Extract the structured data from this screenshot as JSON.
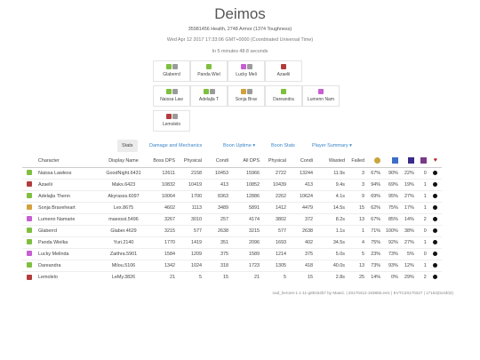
{
  "header": {
    "title": "Deimos",
    "health_line": "35981456 Health, 2748 Armor (1374 Toughness)",
    "date_line": "Wed Apr 12 2017 17:33:06 GMT+0000 (Coordinated Universal Time)",
    "duration_line": "In 5 minutes 48.8 seconds"
  },
  "squad": [
    {
      "name": "Glaberrd",
      "colors": [
        "#7fbf3f",
        "#9b9b9b"
      ]
    },
    {
      "name": "Panda Wiel",
      "colors": [
        "#7fbf3f"
      ]
    },
    {
      "name": "Lucky Meli",
      "colors": [
        "#c75ed1",
        "#9b9b9b"
      ]
    },
    {
      "name": "Azaelii",
      "colors": [
        "#b23c3c"
      ]
    },
    {
      "name": "Naissa Law",
      "colors": [
        "#7fbf3f",
        "#9b9b9b"
      ]
    },
    {
      "name": "Adelajla T",
      "colors": [
        "#7fbf3f",
        "#9b9b9b"
      ]
    },
    {
      "name": "Sonja Brav",
      "colors": [
        "#d1a23b",
        "#9b9b9b"
      ]
    },
    {
      "name": "Dareandra",
      "colors": [
        "#7fbf3f"
      ]
    },
    {
      "name": "Lumenn Nam",
      "colors": [
        "#c75ed1"
      ]
    },
    {
      "name": "Lemolelo",
      "colors": [
        "#b23c3c",
        "#9b9b9b"
      ]
    }
  ],
  "tabs": [
    "Stats",
    "Damage and Mechanics",
    "Boon Uptime ▾",
    "Boon Stats",
    "Player Summary ▾"
  ],
  "table": {
    "headers": [
      "Character",
      "Display Name",
      "Boss DPS",
      "Physical",
      "Condi",
      "All DPS",
      "Physical",
      "Condi",
      "Wasted",
      "Failed"
    ],
    "header_icons": [
      {
        "name": "scholar-icon",
        "color": "#c8a63c"
      },
      {
        "name": "eagle-eye-icon",
        "color": "#3c6ec8"
      },
      {
        "name": "fury-icon",
        "color": "#3a2a8a"
      },
      {
        "name": "might-icon",
        "color": "#7a3a8a"
      },
      {
        "name": "heart-icon",
        "color": "#b8202a"
      }
    ],
    "rows": [
      {
        "color": "#7fbf3f",
        "character": "Naissa Lawless",
        "display": "GoodNight.6431",
        "boss_dps": "12611",
        "phys": "2158",
        "condi": "10453",
        "all_dps": "15966",
        "aphys": "2722",
        "acondi": "13244",
        "wasted": "11.9s",
        "failed": "3",
        "p1": "67%",
        "p2": "90%",
        "p3": "22%",
        "p4": "0"
      },
      {
        "color": "#b23c3c",
        "character": "Azaelii",
        "display": "Maks.6423",
        "boss_dps": "10832",
        "phys": "10419",
        "condi": "413",
        "all_dps": "10852",
        "aphys": "10439",
        "acondi": "413",
        "wasted": "9.4s",
        "failed": "3",
        "p1": "94%",
        "p2": "69%",
        "p3": "19%",
        "p4": "1"
      },
      {
        "color": "#7fbf3f",
        "character": "Adelajla Thenn",
        "display": "Akyrasss.6097",
        "boss_dps": "10064",
        "phys": "1700",
        "condi": "8363",
        "all_dps": "12886",
        "aphys": "2262",
        "acondi": "10624",
        "wasted": "4.1s",
        "failed": "9",
        "p1": "69%",
        "p2": "95%",
        "p3": "27%",
        "p4": "1"
      },
      {
        "color": "#d1a23b",
        "character": "Sonja Braveheart",
        "display": "Lex.8675",
        "boss_dps": "4602",
        "phys": "1113",
        "condi": "3489",
        "all_dps": "5891",
        "aphys": "1412",
        "acondi": "4479",
        "wasted": "14.5s",
        "failed": "15",
        "p1": "62%",
        "p2": "75%",
        "p3": "17%",
        "p4": "1"
      },
      {
        "color": "#c75ed1",
        "character": "Lumenn Namarie",
        "display": "maexsst.5496",
        "boss_dps": "3267",
        "phys": "3010",
        "condi": "257",
        "all_dps": "4174",
        "aphys": "3802",
        "acondi": "372",
        "wasted": "8.2s",
        "failed": "13",
        "p1": "67%",
        "p2": "85%",
        "p3": "14%",
        "p4": "2"
      },
      {
        "color": "#7fbf3f",
        "character": "Glaberrd",
        "display": "Glaber.4629",
        "boss_dps": "3215",
        "phys": "577",
        "condi": "2638",
        "all_dps": "3215",
        "aphys": "577",
        "acondi": "2638",
        "wasted": "1.1s",
        "failed": "1",
        "p1": "71%",
        "p2": "100%",
        "p3": "38%",
        "p4": "0"
      },
      {
        "color": "#7fbf3f",
        "character": "Panda Wielka",
        "display": "Yuri.2140",
        "boss_dps": "1770",
        "phys": "1419",
        "condi": "351",
        "all_dps": "2096",
        "aphys": "1693",
        "acondi": "402",
        "wasted": "34.5s",
        "failed": "4",
        "p1": "75%",
        "p2": "92%",
        "p3": "27%",
        "p4": "1"
      },
      {
        "color": "#c75ed1",
        "character": "Lucky Melinda",
        "display": "Zaithra.5901",
        "boss_dps": "1584",
        "phys": "1209",
        "condi": "375",
        "all_dps": "1589",
        "aphys": "1214",
        "acondi": "375",
        "wasted": "5.0s",
        "failed": "5",
        "p1": "23%",
        "p2": "73%",
        "p3": "5%",
        "p4": "0"
      },
      {
        "color": "#7fbf3f",
        "character": "Dareandra",
        "display": "Milou.5106",
        "boss_dps": "1342",
        "phys": "1024",
        "condi": "318",
        "all_dps": "1723",
        "aphys": "1305",
        "acondi": "418",
        "wasted": "40.0s",
        "failed": "13",
        "p1": "73%",
        "p2": "93%",
        "p3": "12%",
        "p4": "1"
      },
      {
        "color": "#b23c3c",
        "character": "Lemolelo",
        "display": "LeMy.3826",
        "boss_dps": "21",
        "phys": "5",
        "condi": "15",
        "all_dps": "21",
        "aphys": "5",
        "acondi": "15",
        "wasted": "2.8s",
        "failed": "25",
        "p1": "14%",
        "p2": "0%",
        "p3": "29%",
        "p4": "2"
      }
    ]
  },
  "footer": "raid_heroes-1.1-11-g89154b7 by MaaG. | 20170412-193855.evtc | EVTC20170327 | 17154(0x4302)"
}
